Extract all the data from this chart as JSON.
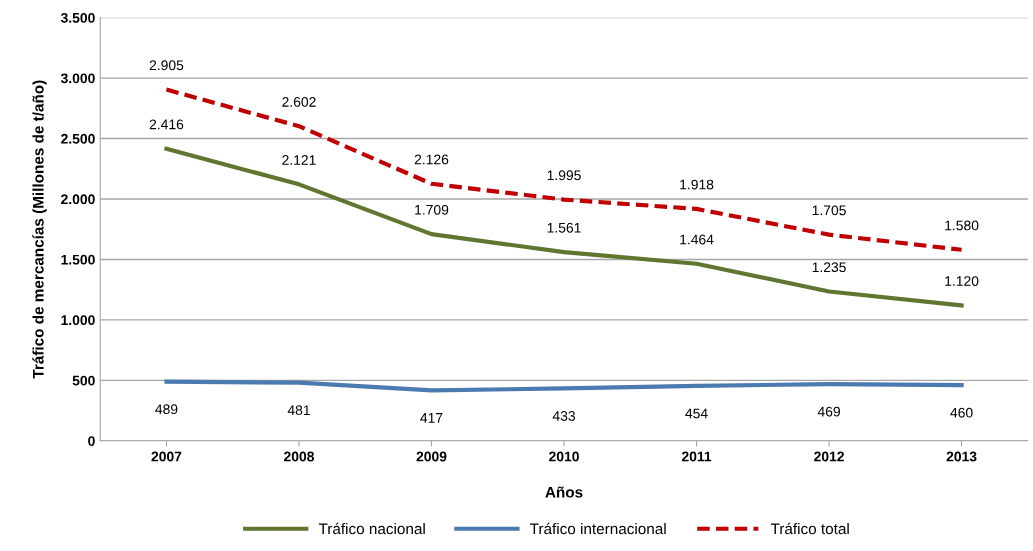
{
  "chart_data": {
    "type": "line",
    "xlabel": "Años",
    "ylabel": "Tráfico de mercancías (Millones de t/año)",
    "categories": [
      "2007",
      "2008",
      "2009",
      "2010",
      "2011",
      "2012",
      "2013"
    ],
    "series": [
      {
        "name": "Tráfico nacional",
        "color": "#5f7530",
        "line_style": "solid",
        "values": [
          2416,
          2121,
          1709,
          1561,
          1464,
          1235,
          1120
        ],
        "value_labels": [
          "2.416",
          "2.121",
          "1.709",
          "1.561",
          "1.464",
          "1.235",
          "1.120"
        ]
      },
      {
        "name": "Tráfico internacional",
        "color": "#4a7ab0",
        "line_style": "solid",
        "values": [
          489,
          481,
          417,
          433,
          454,
          469,
          460
        ],
        "value_labels": [
          "489",
          "481",
          "417",
          "433",
          "454",
          "469",
          "460"
        ]
      },
      {
        "name": "Tráfico total",
        "color": "#c00000",
        "line_style": "dashed",
        "values": [
          2905,
          2602,
          2126,
          1995,
          1918,
          1705,
          1580
        ],
        "value_labels": [
          "2.905",
          "2.602",
          "2.126",
          "1.995",
          "1.918",
          "1.705",
          "1.580"
        ]
      }
    ],
    "ylim": [
      0,
      3500
    ],
    "yticks": [
      0,
      {
        "value": 500,
        "label": "500"
      },
      {
        "value": 1000,
        "label": "1.000"
      },
      {
        "value": 1500,
        "label": "1.500"
      },
      {
        "value": 2000,
        "label": "2.000"
      },
      {
        "value": 2500,
        "label": "2.500"
      },
      {
        "value": 3000,
        "label": "3.000"
      },
      {
        "value": 3500,
        "label": "3.500"
      }
    ],
    "grid": "y",
    "legend": "bottom",
    "marker": "none"
  }
}
